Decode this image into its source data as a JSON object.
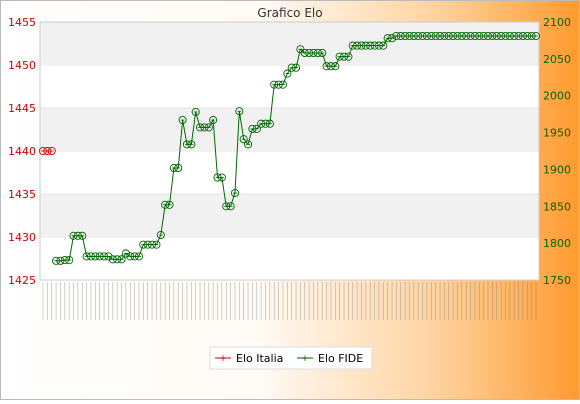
{
  "chart_data": {
    "type": "line",
    "title": "Grafico Elo",
    "y_left": {
      "min": 1425,
      "max": 1455,
      "ticks": [
        1425,
        1430,
        1435,
        1440,
        1445,
        1450,
        1455
      ]
    },
    "y_right": {
      "min": 1750,
      "max": 2100,
      "ticks": [
        1750,
        1800,
        1850,
        1900,
        1950,
        2000,
        2050,
        2100
      ]
    },
    "grid": "horizontal bands",
    "legend_position": "bottom-center",
    "x_count": 114,
    "series": [
      {
        "name": "Elo Italia",
        "axis": "left",
        "color": "#cc0000",
        "values": [
          1440,
          1440,
          1440
        ]
      },
      {
        "name": "Elo FIDE",
        "axis": "right",
        "color": "#006600",
        "x_start": 3,
        "values": [
          1776,
          1776,
          1777,
          1777,
          1810,
          1810,
          1810,
          1782,
          1782,
          1782,
          1782,
          1782,
          1782,
          1778,
          1778,
          1778,
          1786,
          1782,
          1782,
          1782,
          1798,
          1798,
          1798,
          1798,
          1811,
          1852,
          1852,
          1902,
          1902,
          1967,
          1934,
          1934,
          1978,
          1957,
          1957,
          1957,
          1967,
          1889,
          1889,
          1850,
          1850,
          1868,
          1979,
          1941,
          1934,
          1955,
          1955,
          1962,
          1962,
          1962,
          2015,
          2015,
          2015,
          2030,
          2038,
          2038,
          2063,
          2058,
          2058,
          2058,
          2058,
          2058,
          2040,
          2040,
          2040,
          2053,
          2053,
          2053,
          2068,
          2068,
          2068,
          2068,
          2068,
          2068,
          2068,
          2068,
          2078,
          2078,
          2081,
          2081,
          2081,
          2081,
          2081,
          2081,
          2081,
          2081,
          2081,
          2081,
          2081,
          2081,
          2081,
          2081,
          2081,
          2081,
          2081,
          2081,
          2081,
          2081,
          2081,
          2081,
          2081,
          2081,
          2081,
          2081,
          2081,
          2081,
          2081,
          2081,
          2081,
          2081,
          2081
        ]
      }
    ]
  }
}
